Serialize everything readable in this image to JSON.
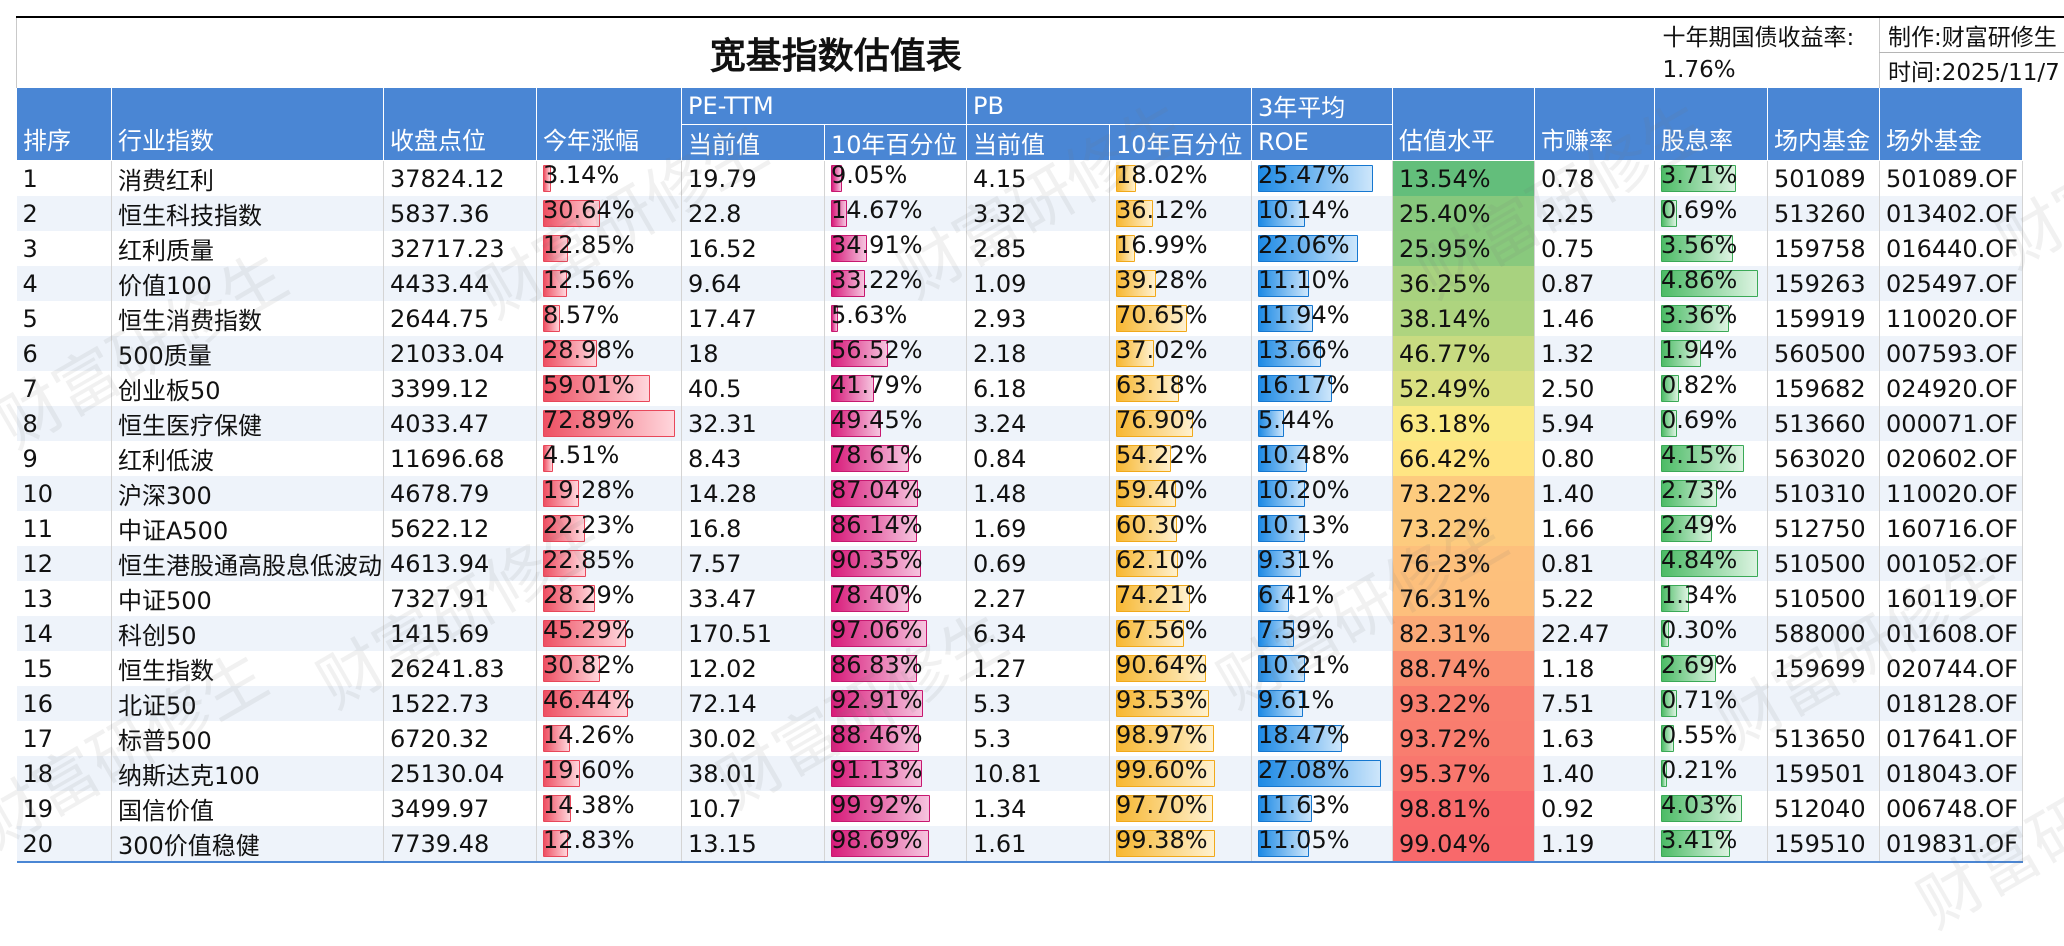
{
  "title": "宽基指数估值表",
  "bond_yield_label": "十年期国债收益率:",
  "bond_yield_value": "1.76%",
  "author_label": "制作:财富研修生",
  "date_label": "时间:2025/11/7",
  "watermark_text": "财富研修生",
  "headers": {
    "rank": "排序",
    "index": "行业指数",
    "close": "收盘点位",
    "ytd": "今年涨幅",
    "pe_group": "PE-TTM",
    "pe_current": "当前值",
    "pe_pct": "10年百分位",
    "pb_group": "PB",
    "pb_current": "当前值",
    "pb_pct": "10年百分位",
    "roe_group": "3年平均",
    "roe": "ROE",
    "valuation": "估值水平",
    "earnings_yield": "市赚率",
    "dividend": "股息率",
    "etf": "场内基金",
    "otc": "场外基金"
  },
  "colors": {
    "header_bg": "#4a86d4",
    "ytd_bar": "#ee5063",
    "pe_bar": "#d81b7a",
    "pb_bar": "#f7b731",
    "roe_bar": "#1d8ae5",
    "dividend_bar": "#4cbb66",
    "valuation_low": "#63be7b",
    "valuation_mid": "#ffeb84",
    "valuation_high": "#f8696b"
  },
  "rows": [
    {
      "rank": "1",
      "name": "消费红利",
      "close": "37824.12",
      "ytd": "3.14%",
      "pe": "19.79",
      "pe_pct": "9.05%",
      "pb": "4.15",
      "pb_pct": "18.02%",
      "roe": "25.47%",
      "val": "13.54%",
      "mzl": "0.78",
      "div": "3.71%",
      "etf": "501089",
      "otc": "501089.OF"
    },
    {
      "rank": "2",
      "name": "恒生科技指数",
      "close": "5837.36",
      "ytd": "30.64%",
      "pe": "22.8",
      "pe_pct": "14.67%",
      "pb": "3.32",
      "pb_pct": "36.12%",
      "roe": "10.14%",
      "val": "25.40%",
      "mzl": "2.25",
      "div": "0.69%",
      "etf": "513260",
      "otc": "013402.OF"
    },
    {
      "rank": "3",
      "name": "红利质量",
      "close": "32717.23",
      "ytd": "12.85%",
      "pe": "16.52",
      "pe_pct": "34.91%",
      "pb": "2.85",
      "pb_pct": "16.99%",
      "roe": "22.06%",
      "val": "25.95%",
      "mzl": "0.75",
      "div": "3.56%",
      "etf": "159758",
      "otc": "016440.OF"
    },
    {
      "rank": "4",
      "name": "价值100",
      "close": "4433.44",
      "ytd": "12.56%",
      "pe": "9.64",
      "pe_pct": "33.22%",
      "pb": "1.09",
      "pb_pct": "39.28%",
      "roe": "11.10%",
      "val": "36.25%",
      "mzl": "0.87",
      "div": "4.86%",
      "etf": "159263",
      "otc": "025497.OF"
    },
    {
      "rank": "5",
      "name": "恒生消费指数",
      "close": "2644.75",
      "ytd": "8.57%",
      "pe": "17.47",
      "pe_pct": "5.63%",
      "pb": "2.93",
      "pb_pct": "70.65%",
      "roe": "11.94%",
      "val": "38.14%",
      "mzl": "1.46",
      "div": "3.36%",
      "etf": "159919",
      "otc": "110020.OF"
    },
    {
      "rank": "6",
      "name": "500质量",
      "close": "21033.04",
      "ytd": "28.98%",
      "pe": "18",
      "pe_pct": "56.52%",
      "pb": "2.18",
      "pb_pct": "37.02%",
      "roe": "13.66%",
      "val": "46.77%",
      "mzl": "1.32",
      "div": "1.94%",
      "etf": "560500",
      "otc": "007593.OF"
    },
    {
      "rank": "7",
      "name": "创业板50",
      "close": "3399.12",
      "ytd": "59.01%",
      "pe": "40.5",
      "pe_pct": "41.79%",
      "pb": "6.18",
      "pb_pct": "63.18%",
      "roe": "16.17%",
      "val": "52.49%",
      "mzl": "2.50",
      "div": "0.82%",
      "etf": "159682",
      "otc": "024920.OF"
    },
    {
      "rank": "8",
      "name": "恒生医疗保健",
      "close": "4033.47",
      "ytd": "72.89%",
      "pe": "32.31",
      "pe_pct": "49.45%",
      "pb": "3.24",
      "pb_pct": "76.90%",
      "roe": "5.44%",
      "val": "63.18%",
      "mzl": "5.94",
      "div": "0.69%",
      "etf": "513660",
      "otc": "000071.OF"
    },
    {
      "rank": "9",
      "name": "红利低波",
      "close": "11696.68",
      "ytd": "4.51%",
      "pe": "8.43",
      "pe_pct": "78.61%",
      "pb": "0.84",
      "pb_pct": "54.22%",
      "roe": "10.48%",
      "val": "66.42%",
      "mzl": "0.80",
      "div": "4.15%",
      "etf": "563020",
      "otc": "020602.OF"
    },
    {
      "rank": "10",
      "name": "沪深300",
      "close": "4678.79",
      "ytd": "19.28%",
      "pe": "14.28",
      "pe_pct": "87.04%",
      "pb": "1.48",
      "pb_pct": "59.40%",
      "roe": "10.20%",
      "val": "73.22%",
      "mzl": "1.40",
      "div": "2.73%",
      "etf": "510310",
      "otc": "110020.OF"
    },
    {
      "rank": "11",
      "name": "中证A500",
      "close": "5622.12",
      "ytd": "22.23%",
      "pe": "16.8",
      "pe_pct": "86.14%",
      "pb": "1.69",
      "pb_pct": "60.30%",
      "roe": "10.13%",
      "val": "73.22%",
      "mzl": "1.66",
      "div": "2.49%",
      "etf": "512750",
      "otc": "160716.OF"
    },
    {
      "rank": "12",
      "name": "恒生港股通高股息低波动",
      "close": "4613.94",
      "ytd": "22.85%",
      "pe": "7.57",
      "pe_pct": "90.35%",
      "pb": "0.69",
      "pb_pct": "62.10%",
      "roe": "9.31%",
      "val": "76.23%",
      "mzl": "0.81",
      "div": "4.84%",
      "etf": "510500",
      "otc": "001052.OF"
    },
    {
      "rank": "13",
      "name": "中证500",
      "close": "7327.91",
      "ytd": "28.29%",
      "pe": "33.47",
      "pe_pct": "78.40%",
      "pb": "2.27",
      "pb_pct": "74.21%",
      "roe": "6.41%",
      "val": "76.31%",
      "mzl": "5.22",
      "div": "1.34%",
      "etf": "510500",
      "otc": "160119.OF"
    },
    {
      "rank": "14",
      "name": "科创50",
      "close": "1415.69",
      "ytd": "45.29%",
      "pe": "170.51",
      "pe_pct": "97.06%",
      "pb": "6.34",
      "pb_pct": "67.56%",
      "roe": "7.59%",
      "val": "82.31%",
      "mzl": "22.47",
      "div": "0.30%",
      "etf": "588000",
      "otc": "011608.OF"
    },
    {
      "rank": "15",
      "name": "恒生指数",
      "close": "26241.83",
      "ytd": "30.82%",
      "pe": "12.02",
      "pe_pct": "86.83%",
      "pb": "1.27",
      "pb_pct": "90.64%",
      "roe": "10.21%",
      "val": "88.74%",
      "mzl": "1.18",
      "div": "2.69%",
      "etf": "159699",
      "otc": "020744.OF"
    },
    {
      "rank": "16",
      "name": "北证50",
      "close": "1522.73",
      "ytd": "46.44%",
      "pe": "72.14",
      "pe_pct": "92.91%",
      "pb": "5.3",
      "pb_pct": "93.53%",
      "roe": "9.61%",
      "val": "93.22%",
      "mzl": "7.51",
      "div": "0.71%",
      "etf": "",
      "otc": "018128.OF"
    },
    {
      "rank": "17",
      "name": "标普500",
      "close": "6720.32",
      "ytd": "14.26%",
      "pe": "30.02",
      "pe_pct": "88.46%",
      "pb": "5.3",
      "pb_pct": "98.97%",
      "roe": "18.47%",
      "val": "93.72%",
      "mzl": "1.63",
      "div": "0.55%",
      "etf": "513650",
      "otc": "017641.OF"
    },
    {
      "rank": "18",
      "name": "纳斯达克100",
      "close": "25130.04",
      "ytd": "19.60%",
      "pe": "38.01",
      "pe_pct": "91.13%",
      "pb": "10.81",
      "pb_pct": "99.60%",
      "roe": "27.08%",
      "val": "95.37%",
      "mzl": "1.40",
      "div": "0.21%",
      "etf": "159501",
      "otc": "018043.OF"
    },
    {
      "rank": "19",
      "name": "国信价值",
      "close": "3499.97",
      "ytd": "14.38%",
      "pe": "10.7",
      "pe_pct": "99.92%",
      "pb": "1.34",
      "pb_pct": "97.70%",
      "roe": "11.63%",
      "val": "98.81%",
      "mzl": "0.92",
      "div": "4.03%",
      "etf": "512040",
      "otc": "006748.OF"
    },
    {
      "rank": "20",
      "name": "300价值稳健",
      "close": "7739.48",
      "ytd": "12.83%",
      "pe": "13.15",
      "pe_pct": "98.69%",
      "pb": "1.61",
      "pb_pct": "99.38%",
      "roe": "11.05%",
      "val": "99.04%",
      "mzl": "1.19",
      "div": "3.41%",
      "etf": "159510",
      "otc": "019831.OF"
    }
  ]
}
